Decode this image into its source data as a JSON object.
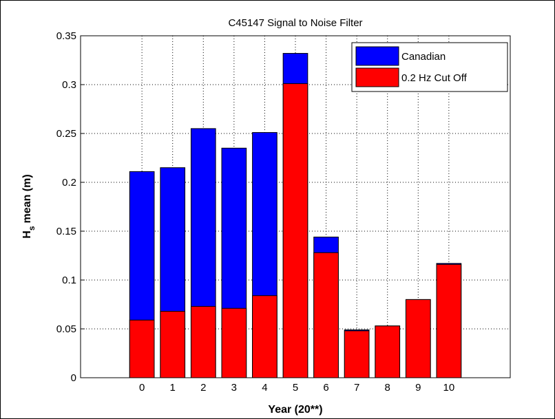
{
  "chart_data": {
    "type": "bar",
    "title": "C45147 Signal to Noise Filter",
    "xlabel": "Year (20**)",
    "ylabel": {
      "main": "H",
      "sub": "s",
      "rest": "mean (m)"
    },
    "x": [
      0,
      1,
      2,
      3,
      4,
      5,
      6,
      7,
      8,
      9,
      10
    ],
    "series": [
      {
        "name": "Canadian",
        "color": "#0000ff",
        "values": [
          0.211,
          0.215,
          0.255,
          0.235,
          0.251,
          0.332,
          0.144,
          0.049,
          0.053,
          0.08,
          0.117
        ]
      },
      {
        "name": "0.2 Hz Cut Off",
        "color": "#ff0000",
        "values": [
          0.059,
          0.068,
          0.073,
          0.071,
          0.084,
          0.301,
          0.128,
          0.048,
          0.053,
          0.08,
          0.116
        ]
      }
    ],
    "xlim": [
      -2,
      12
    ],
    "xticks": [
      0,
      1,
      2,
      3,
      4,
      5,
      6,
      7,
      8,
      9,
      10
    ],
    "ylim": [
      0,
      0.35
    ],
    "yticks": [
      0,
      0.05,
      0.1,
      0.15,
      0.2,
      0.25,
      0.3,
      0.35
    ],
    "grid": true,
    "legend": "northeast"
  }
}
